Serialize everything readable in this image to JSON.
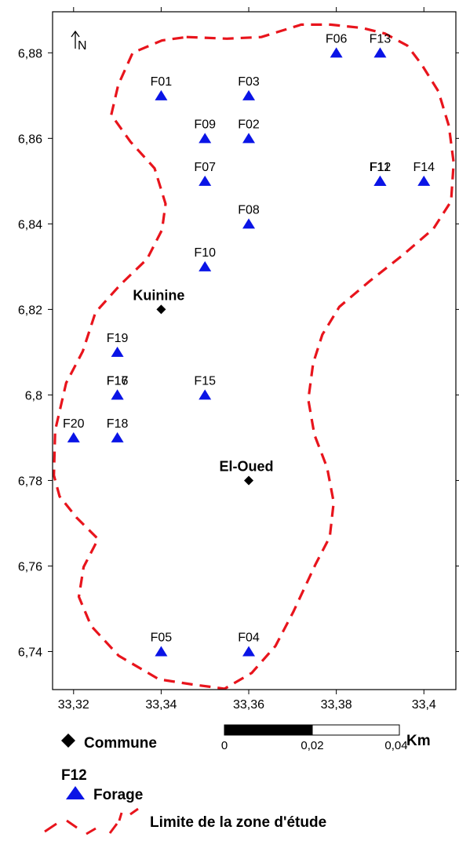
{
  "colors": {
    "boundary": "#e8141c",
    "triangle": "#0a14e6",
    "commune": "#000000",
    "frame": "#000000"
  },
  "axes": {
    "x_ticks": [
      "33,32",
      "33,34",
      "33,36",
      "33,38",
      "33,4"
    ],
    "x_tick_values": [
      33.32,
      33.34,
      33.36,
      33.38,
      33.4
    ],
    "y_ticks": [
      "6,88",
      "6,86",
      "6,84",
      "6,82",
      "6,8",
      "6,78",
      "6,76",
      "6,74"
    ],
    "y_tick_values": [
      6.88,
      6.86,
      6.84,
      6.82,
      6.8,
      6.78,
      6.76,
      6.74
    ],
    "x_range": [
      33.3152,
      33.4073
    ],
    "y_range": [
      6.7311,
      6.8896
    ]
  },
  "north_arrow": {
    "label": "N"
  },
  "wells": [
    {
      "label": "F01",
      "x": 33.34,
      "y": 6.87
    },
    {
      "label": "F03",
      "x": 33.36,
      "y": 6.87
    },
    {
      "label": "F09",
      "x": 33.35,
      "y": 6.86
    },
    {
      "label": "F02",
      "x": 33.36,
      "y": 6.86
    },
    {
      "label": "F07",
      "x": 33.35,
      "y": 6.85
    },
    {
      "label": "F08",
      "x": 33.36,
      "y": 6.84
    },
    {
      "label": "F10",
      "x": 33.35,
      "y": 6.83
    },
    {
      "label": "F06",
      "x": 33.38,
      "y": 6.88
    },
    {
      "label": "F13",
      "x": 33.39,
      "y": 6.88
    },
    {
      "label": "F11",
      "x": 33.39,
      "y": 6.85
    },
    {
      "label": "F12",
      "x": 33.39,
      "y": 6.85
    },
    {
      "label": "F14",
      "x": 33.4,
      "y": 6.85
    },
    {
      "label": "F19",
      "x": 33.33,
      "y": 6.81
    },
    {
      "label": "F16",
      "x": 33.33,
      "y": 6.8
    },
    {
      "label": "F17",
      "x": 33.33,
      "y": 6.8
    },
    {
      "label": "F15",
      "x": 33.35,
      "y": 6.8
    },
    {
      "label": "F20",
      "x": 33.32,
      "y": 6.79
    },
    {
      "label": "F18",
      "x": 33.33,
      "y": 6.79
    },
    {
      "label": "F05",
      "x": 33.34,
      "y": 6.74
    },
    {
      "label": "F04",
      "x": 33.36,
      "y": 6.74
    }
  ],
  "communes": [
    {
      "label": "Kuinine",
      "x": 33.34,
      "y": 6.82
    },
    {
      "label": "El-Oued",
      "x": 33.36,
      "y": 6.78
    }
  ],
  "boundary": [
    [
      33.3458,
      6.8837
    ],
    [
      33.355,
      6.8833
    ],
    [
      33.3629,
      6.8837
    ],
    [
      33.372,
      6.8866
    ],
    [
      33.3787,
      6.8866
    ],
    [
      33.386,
      6.8858
    ],
    [
      33.3911,
      6.8845
    ],
    [
      33.3962,
      6.8817
    ],
    [
      33.3994,
      6.8774
    ],
    [
      33.4033,
      6.871
    ],
    [
      33.4057,
      6.8629
    ],
    [
      33.4068,
      6.8543
    ],
    [
      33.4062,
      6.8453
    ],
    [
      33.4022,
      6.8389
    ],
    [
      33.3953,
      6.8328
    ],
    [
      33.3876,
      6.8266
    ],
    [
      33.3807,
      6.8206
    ],
    [
      33.3768,
      6.8141
    ],
    [
      33.3747,
      6.8074
    ],
    [
      33.3736,
      6.7989
    ],
    [
      33.375,
      6.7907
    ],
    [
      33.3779,
      6.783
    ],
    [
      33.3794,
      6.7749
    ],
    [
      33.3785,
      6.7668
    ],
    [
      33.3752,
      6.7603
    ],
    [
      33.3702,
      6.7493
    ],
    [
      33.3661,
      6.7413
    ],
    [
      33.3607,
      6.735
    ],
    [
      33.3545,
      6.7313
    ],
    [
      33.3472,
      6.7323
    ],
    [
      33.3395,
      6.7335
    ],
    [
      33.3303,
      6.739
    ],
    [
      33.324,
      6.746
    ],
    [
      33.3212,
      6.7528
    ],
    [
      33.3223,
      6.7598
    ],
    [
      33.3256,
      6.7663
    ],
    [
      33.3207,
      6.7713
    ],
    [
      33.3168,
      6.7763
    ],
    [
      33.3155,
      6.7812
    ],
    [
      33.3158,
      6.7917
    ],
    [
      33.3183,
      6.8028
    ],
    [
      33.3221,
      6.8102
    ],
    [
      33.325,
      6.8193
    ],
    [
      33.3307,
      6.8258
    ],
    [
      33.3368,
      6.8318
    ],
    [
      33.3402,
      6.8386
    ],
    [
      33.341,
      6.8447
    ],
    [
      33.3385,
      6.853
    ],
    [
      33.333,
      6.8592
    ],
    [
      33.3286,
      6.8655
    ],
    [
      33.3302,
      6.8725
    ],
    [
      33.3335,
      6.88
    ],
    [
      33.3402,
      6.8829
    ],
    [
      33.3458,
      6.8837
    ]
  ],
  "scalebar": {
    "labels": [
      "0",
      "0,02",
      "0,04"
    ],
    "unit": "Km"
  },
  "legend": {
    "commune_label": "Commune",
    "sample_label": "F12",
    "forage_label": "Forage",
    "limit_label": "Limite de la zone d'étude"
  }
}
